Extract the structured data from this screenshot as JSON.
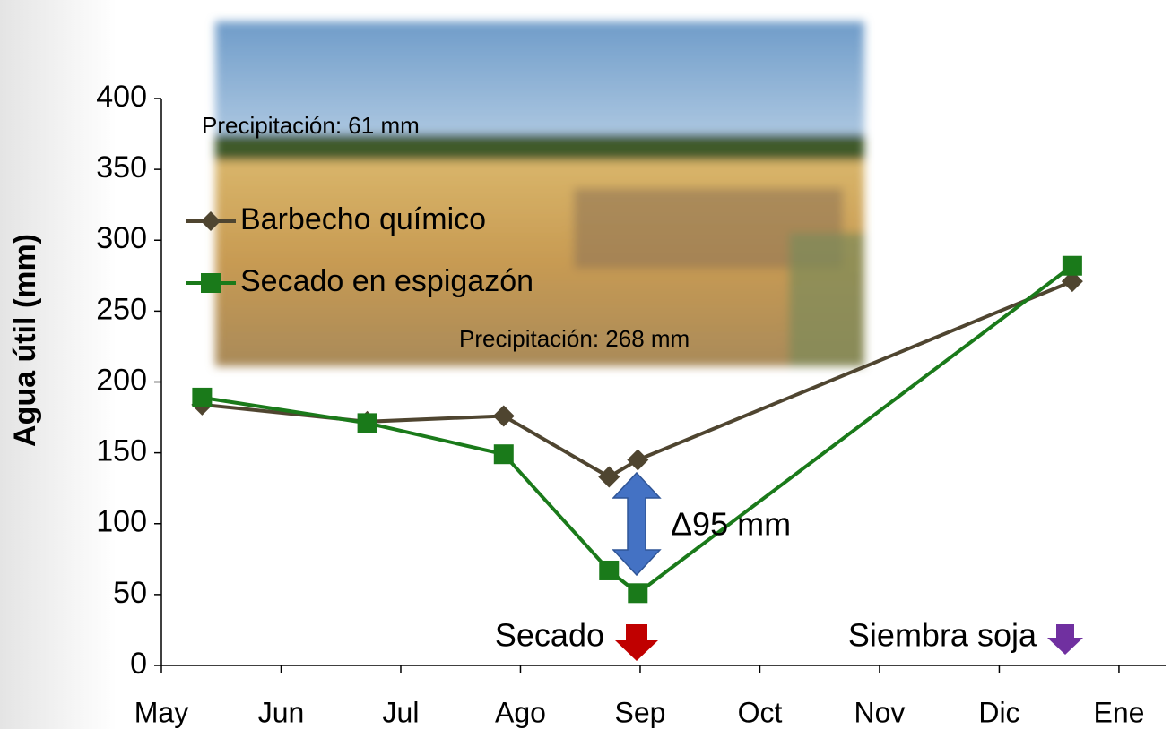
{
  "chart_data": {
    "type": "line",
    "y_label": "Agua útil (mm)",
    "x": [
      0.34,
      1.72,
      2.86,
      3.74,
      3.98,
      7.61
    ],
    "series": [
      {
        "name": "Barbecho químico",
        "color": "#4f4530",
        "marker": "diamond",
        "values": [
          184,
          172,
          176,
          133,
          145,
          271
        ]
      },
      {
        "name": "Secado en espigazón",
        "color": "#1a7a1a",
        "marker": "square",
        "values": [
          189,
          171,
          149,
          67,
          51,
          282
        ]
      }
    ],
    "xlim": [
      0,
      8.39
    ],
    "xticks": [
      {
        "value": 0,
        "label": "May"
      },
      {
        "value": 1,
        "label": "Jun"
      },
      {
        "value": 2,
        "label": "Jul"
      },
      {
        "value": 3,
        "label": "Ago"
      },
      {
        "value": 4,
        "label": "Sep"
      },
      {
        "value": 5,
        "label": "Oct"
      },
      {
        "value": 6,
        "label": "Nov"
      },
      {
        "value": 7,
        "label": "Dic"
      },
      {
        "value": 8,
        "label": "Ene"
      }
    ],
    "ylim": [
      0,
      400
    ],
    "yticks": [
      0,
      50,
      100,
      150,
      200,
      250,
      300,
      350,
      400
    ],
    "grid": false,
    "legend": "upper left",
    "annotations": [
      "Precipitación: 61 mm",
      "Precipitación: 268 mm",
      "Δ95 mm",
      "Secado",
      "Siembra soja"
    ]
  }
}
